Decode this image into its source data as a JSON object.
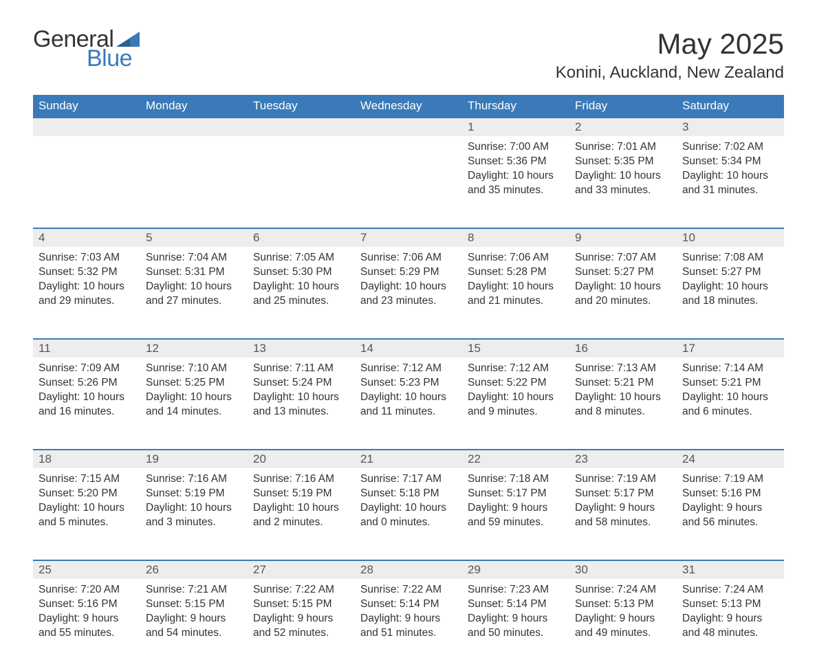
{
  "logo": {
    "general": "General",
    "blue": "Blue",
    "flag_color": "#3a7ab8"
  },
  "title": "May 2025",
  "location": "Konini, Auckland, New Zealand",
  "colors": {
    "header_bg": "#3a7ab8",
    "header_text": "#ffffff",
    "daynum_bg": "#ededed",
    "border_top": "#3a7ab8",
    "body_text": "#333333",
    "muted_text": "#555555",
    "page_bg": "#ffffff"
  },
  "fonts": {
    "title_size": 42,
    "location_size": 24,
    "header_size": 17,
    "cell_size": 15.5
  },
  "weekdays": [
    "Sunday",
    "Monday",
    "Tuesday",
    "Wednesday",
    "Thursday",
    "Friday",
    "Saturday"
  ],
  "weeks": [
    [
      null,
      null,
      null,
      null,
      {
        "n": "1",
        "sunrise": "7:00 AM",
        "sunset": "5:36 PM",
        "daylight": "10 hours and 35 minutes."
      },
      {
        "n": "2",
        "sunrise": "7:01 AM",
        "sunset": "5:35 PM",
        "daylight": "10 hours and 33 minutes."
      },
      {
        "n": "3",
        "sunrise": "7:02 AM",
        "sunset": "5:34 PM",
        "daylight": "10 hours and 31 minutes."
      }
    ],
    [
      {
        "n": "4",
        "sunrise": "7:03 AM",
        "sunset": "5:32 PM",
        "daylight": "10 hours and 29 minutes."
      },
      {
        "n": "5",
        "sunrise": "7:04 AM",
        "sunset": "5:31 PM",
        "daylight": "10 hours and 27 minutes."
      },
      {
        "n": "6",
        "sunrise": "7:05 AM",
        "sunset": "5:30 PM",
        "daylight": "10 hours and 25 minutes."
      },
      {
        "n": "7",
        "sunrise": "7:06 AM",
        "sunset": "5:29 PM",
        "daylight": "10 hours and 23 minutes."
      },
      {
        "n": "8",
        "sunrise": "7:06 AM",
        "sunset": "5:28 PM",
        "daylight": "10 hours and 21 minutes."
      },
      {
        "n": "9",
        "sunrise": "7:07 AM",
        "sunset": "5:27 PM",
        "daylight": "10 hours and 20 minutes."
      },
      {
        "n": "10",
        "sunrise": "7:08 AM",
        "sunset": "5:27 PM",
        "daylight": "10 hours and 18 minutes."
      }
    ],
    [
      {
        "n": "11",
        "sunrise": "7:09 AM",
        "sunset": "5:26 PM",
        "daylight": "10 hours and 16 minutes."
      },
      {
        "n": "12",
        "sunrise": "7:10 AM",
        "sunset": "5:25 PM",
        "daylight": "10 hours and 14 minutes."
      },
      {
        "n": "13",
        "sunrise": "7:11 AM",
        "sunset": "5:24 PM",
        "daylight": "10 hours and 13 minutes."
      },
      {
        "n": "14",
        "sunrise": "7:12 AM",
        "sunset": "5:23 PM",
        "daylight": "10 hours and 11 minutes."
      },
      {
        "n": "15",
        "sunrise": "7:12 AM",
        "sunset": "5:22 PM",
        "daylight": "10 hours and 9 minutes."
      },
      {
        "n": "16",
        "sunrise": "7:13 AM",
        "sunset": "5:21 PM",
        "daylight": "10 hours and 8 minutes."
      },
      {
        "n": "17",
        "sunrise": "7:14 AM",
        "sunset": "5:21 PM",
        "daylight": "10 hours and 6 minutes."
      }
    ],
    [
      {
        "n": "18",
        "sunrise": "7:15 AM",
        "sunset": "5:20 PM",
        "daylight": "10 hours and 5 minutes."
      },
      {
        "n": "19",
        "sunrise": "7:16 AM",
        "sunset": "5:19 PM",
        "daylight": "10 hours and 3 minutes."
      },
      {
        "n": "20",
        "sunrise": "7:16 AM",
        "sunset": "5:19 PM",
        "daylight": "10 hours and 2 minutes."
      },
      {
        "n": "21",
        "sunrise": "7:17 AM",
        "sunset": "5:18 PM",
        "daylight": "10 hours and 0 minutes."
      },
      {
        "n": "22",
        "sunrise": "7:18 AM",
        "sunset": "5:17 PM",
        "daylight": "9 hours and 59 minutes."
      },
      {
        "n": "23",
        "sunrise": "7:19 AM",
        "sunset": "5:17 PM",
        "daylight": "9 hours and 58 minutes."
      },
      {
        "n": "24",
        "sunrise": "7:19 AM",
        "sunset": "5:16 PM",
        "daylight": "9 hours and 56 minutes."
      }
    ],
    [
      {
        "n": "25",
        "sunrise": "7:20 AM",
        "sunset": "5:16 PM",
        "daylight": "9 hours and 55 minutes."
      },
      {
        "n": "26",
        "sunrise": "7:21 AM",
        "sunset": "5:15 PM",
        "daylight": "9 hours and 54 minutes."
      },
      {
        "n": "27",
        "sunrise": "7:22 AM",
        "sunset": "5:15 PM",
        "daylight": "9 hours and 52 minutes."
      },
      {
        "n": "28",
        "sunrise": "7:22 AM",
        "sunset": "5:14 PM",
        "daylight": "9 hours and 51 minutes."
      },
      {
        "n": "29",
        "sunrise": "7:23 AM",
        "sunset": "5:14 PM",
        "daylight": "9 hours and 50 minutes."
      },
      {
        "n": "30",
        "sunrise": "7:24 AM",
        "sunset": "5:13 PM",
        "daylight": "9 hours and 49 minutes."
      },
      {
        "n": "31",
        "sunrise": "7:24 AM",
        "sunset": "5:13 PM",
        "daylight": "9 hours and 48 minutes."
      }
    ]
  ],
  "labels": {
    "sunrise": "Sunrise:",
    "sunset": "Sunset:",
    "daylight": "Daylight:"
  }
}
